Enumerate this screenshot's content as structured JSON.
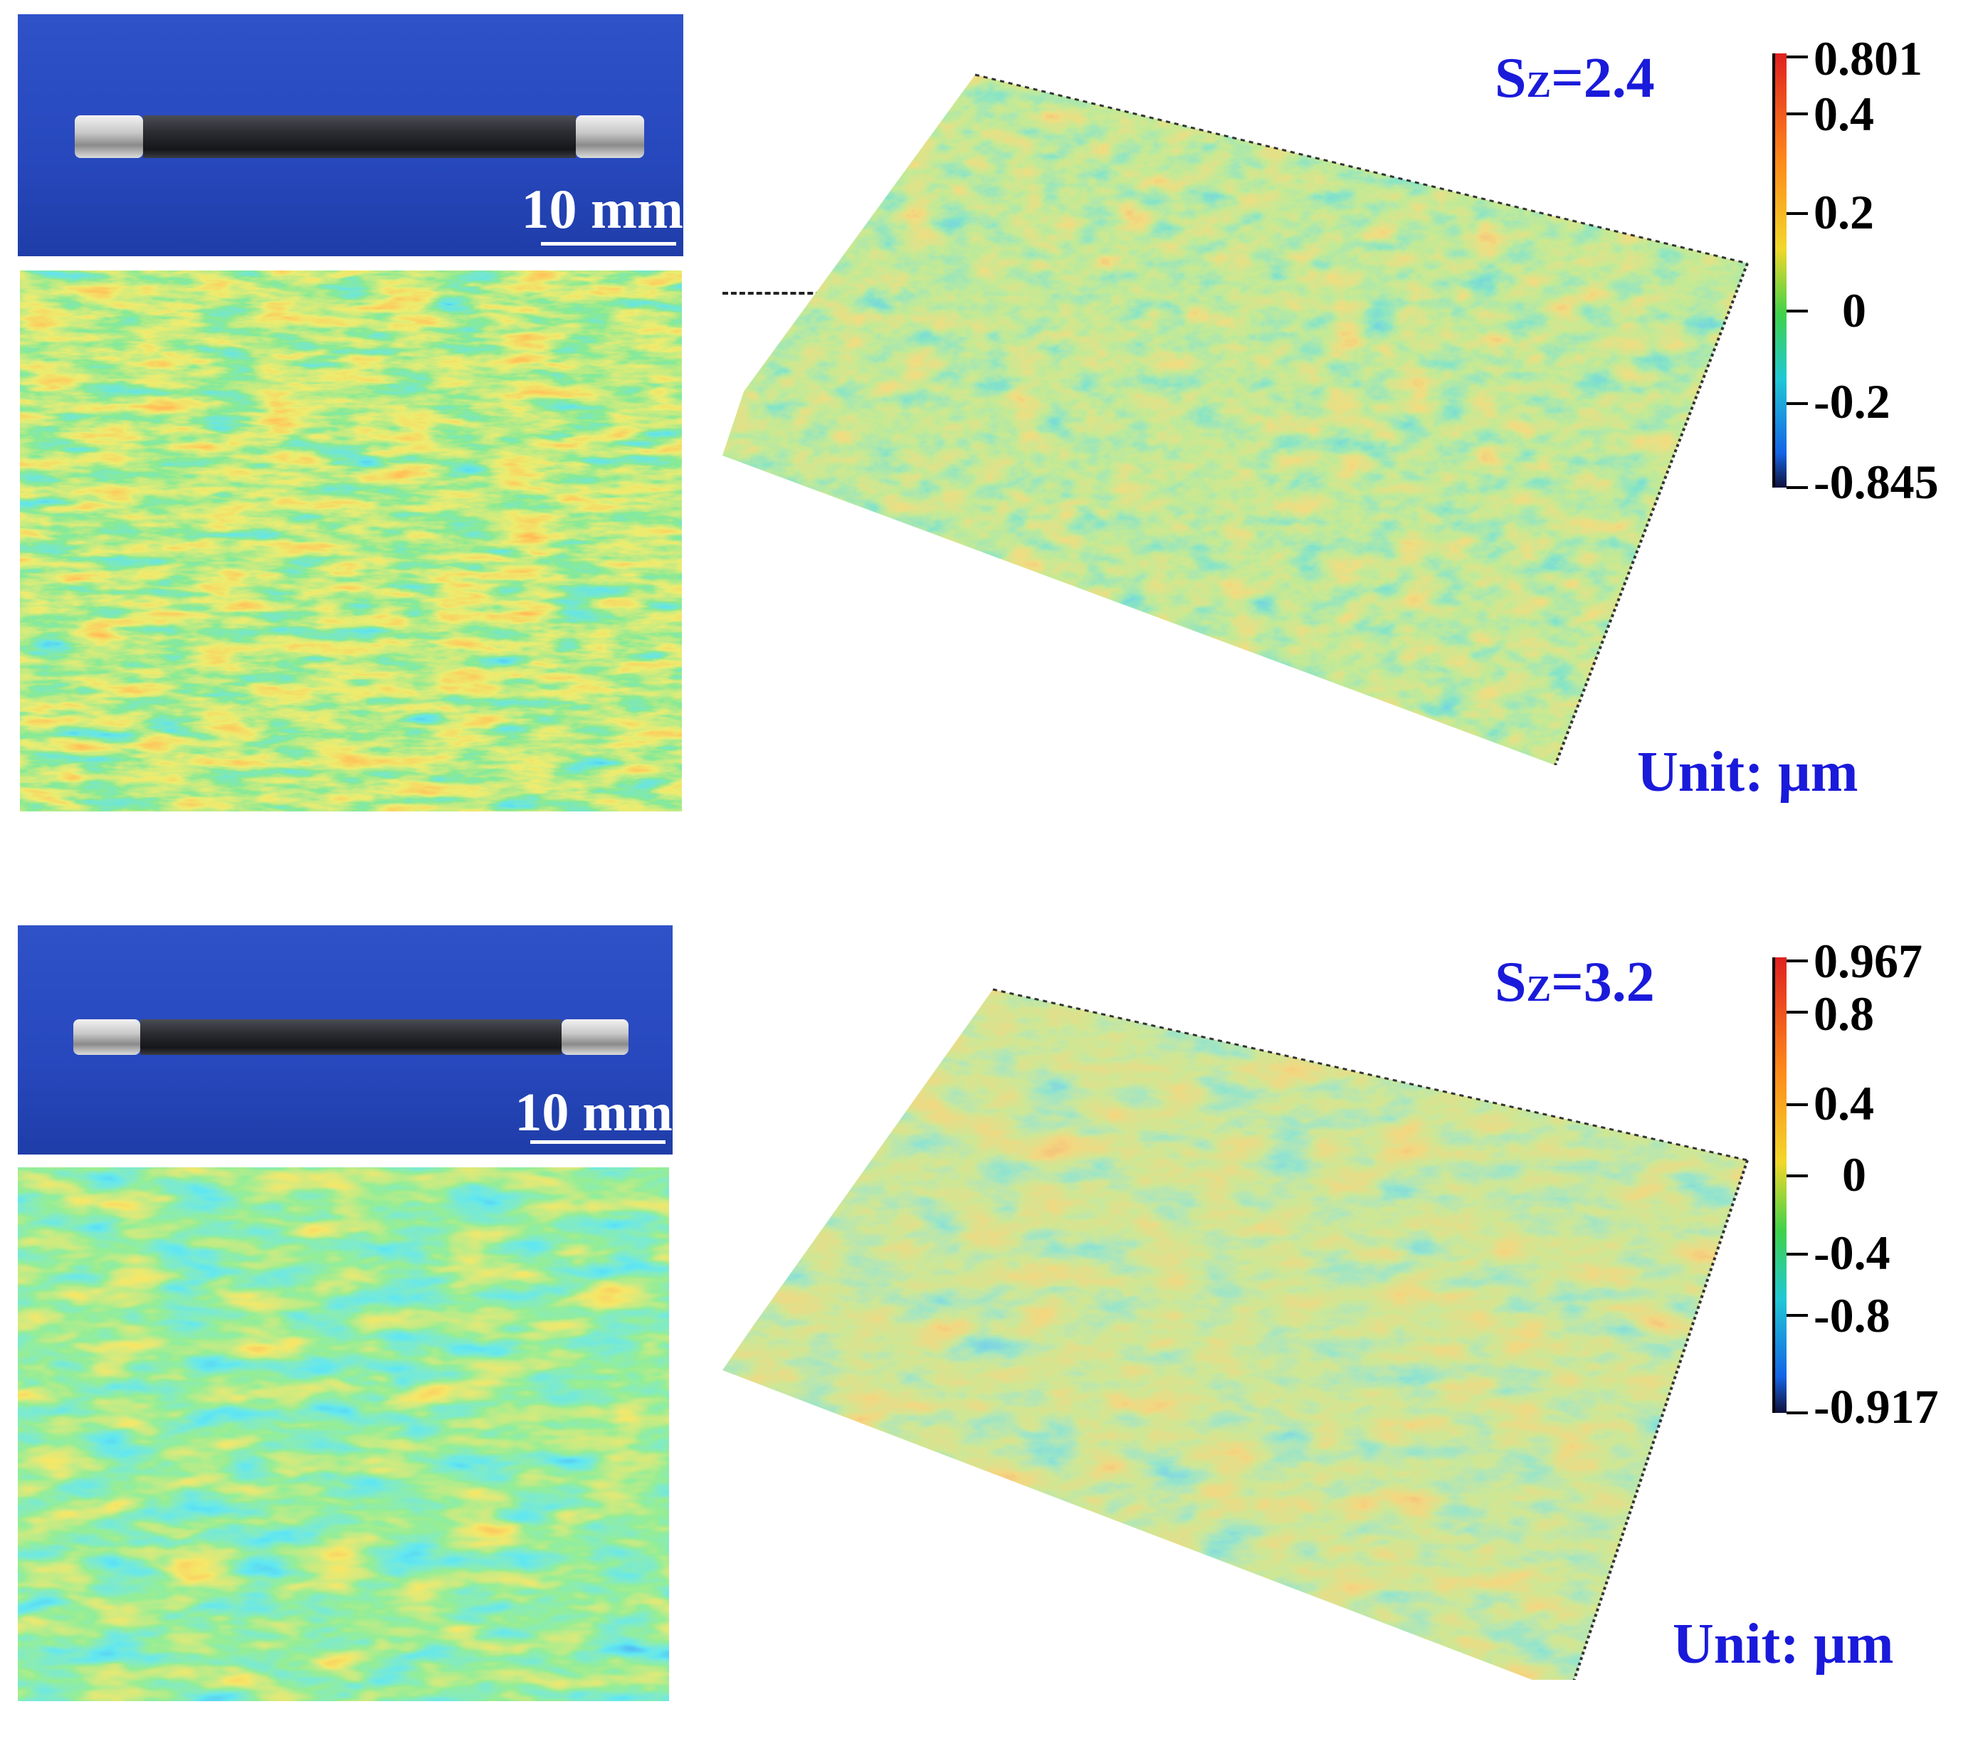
{
  "panels": [
    {
      "scale_label": "10 mm",
      "sz_prefix": "S",
      "sz_sub": "Z",
      "sz_value": "=2.4",
      "unit": "Unit: µm",
      "colorbar_ticks": [
        "0.801",
        "0.4",
        "0.2",
        "0",
        "-0.2",
        "-0.845"
      ],
      "colorbar_tick_values": [
        0.801,
        0.4,
        0.2,
        0,
        -0.2,
        -0.845
      ]
    },
    {
      "scale_label": "10 mm",
      "sz_prefix": "S",
      "sz_sub": "Z",
      "sz_value": "=3.2",
      "unit": "Unit: µm",
      "colorbar_ticks": [
        "0.967",
        "0.8",
        "0.4",
        "0",
        "-0.4",
        "-0.8",
        "-0.917"
      ],
      "colorbar_tick_values": [
        0.967,
        0.8,
        0.4,
        0,
        -0.4,
        -0.8,
        -0.917
      ]
    }
  ],
  "colors": {
    "label_blue": "#1a1adb",
    "photo_background": "#2748bd",
    "colormap": [
      "#10103a",
      "#1464e6",
      "#1fc8d6",
      "#3fd24a",
      "#f2d72a",
      "#ff8a1a",
      "#e02020"
    ]
  }
}
